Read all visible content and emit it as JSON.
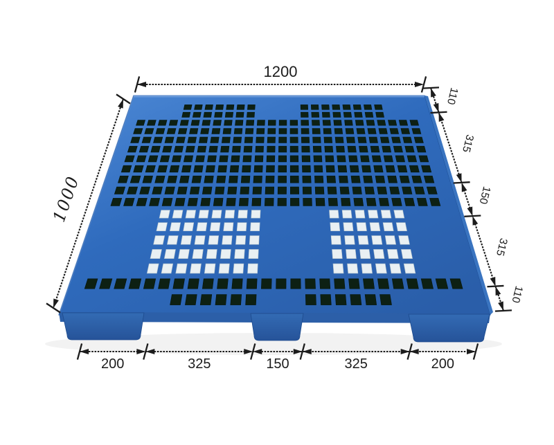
{
  "figure": {
    "name": "blue-plastic-pallet-dimension-diagram",
    "colors": {
      "background": "#ffffff",
      "deck_blue_light": "#4d89d6",
      "deck_blue": "#2f6bbd",
      "deck_blue_dark": "#2a5ea9",
      "edge_highlight": "#7fa9e2",
      "apron_blue": "#2c5fa8",
      "foot_blue": "#336bb4",
      "foot_blue_dark": "#265399",
      "side_wall_blue": "#3a74c0",
      "hole_dark": "#0d2013",
      "hole_dark_stroke": "#06140b",
      "hole_light": "#e9f0f3",
      "hole_light_stroke": "#b7c5cc",
      "dimension_ink": "#1c1c1c",
      "ground_shadow": "#000000"
    }
  },
  "dimensions": {
    "top": {
      "label": "1200"
    },
    "left": {
      "label": "1000"
    },
    "right": {
      "segments": [
        "110",
        "315",
        "150",
        "315",
        "110"
      ]
    },
    "bottom": {
      "segments": [
        "200",
        "325",
        "150",
        "325",
        "200"
      ]
    }
  }
}
